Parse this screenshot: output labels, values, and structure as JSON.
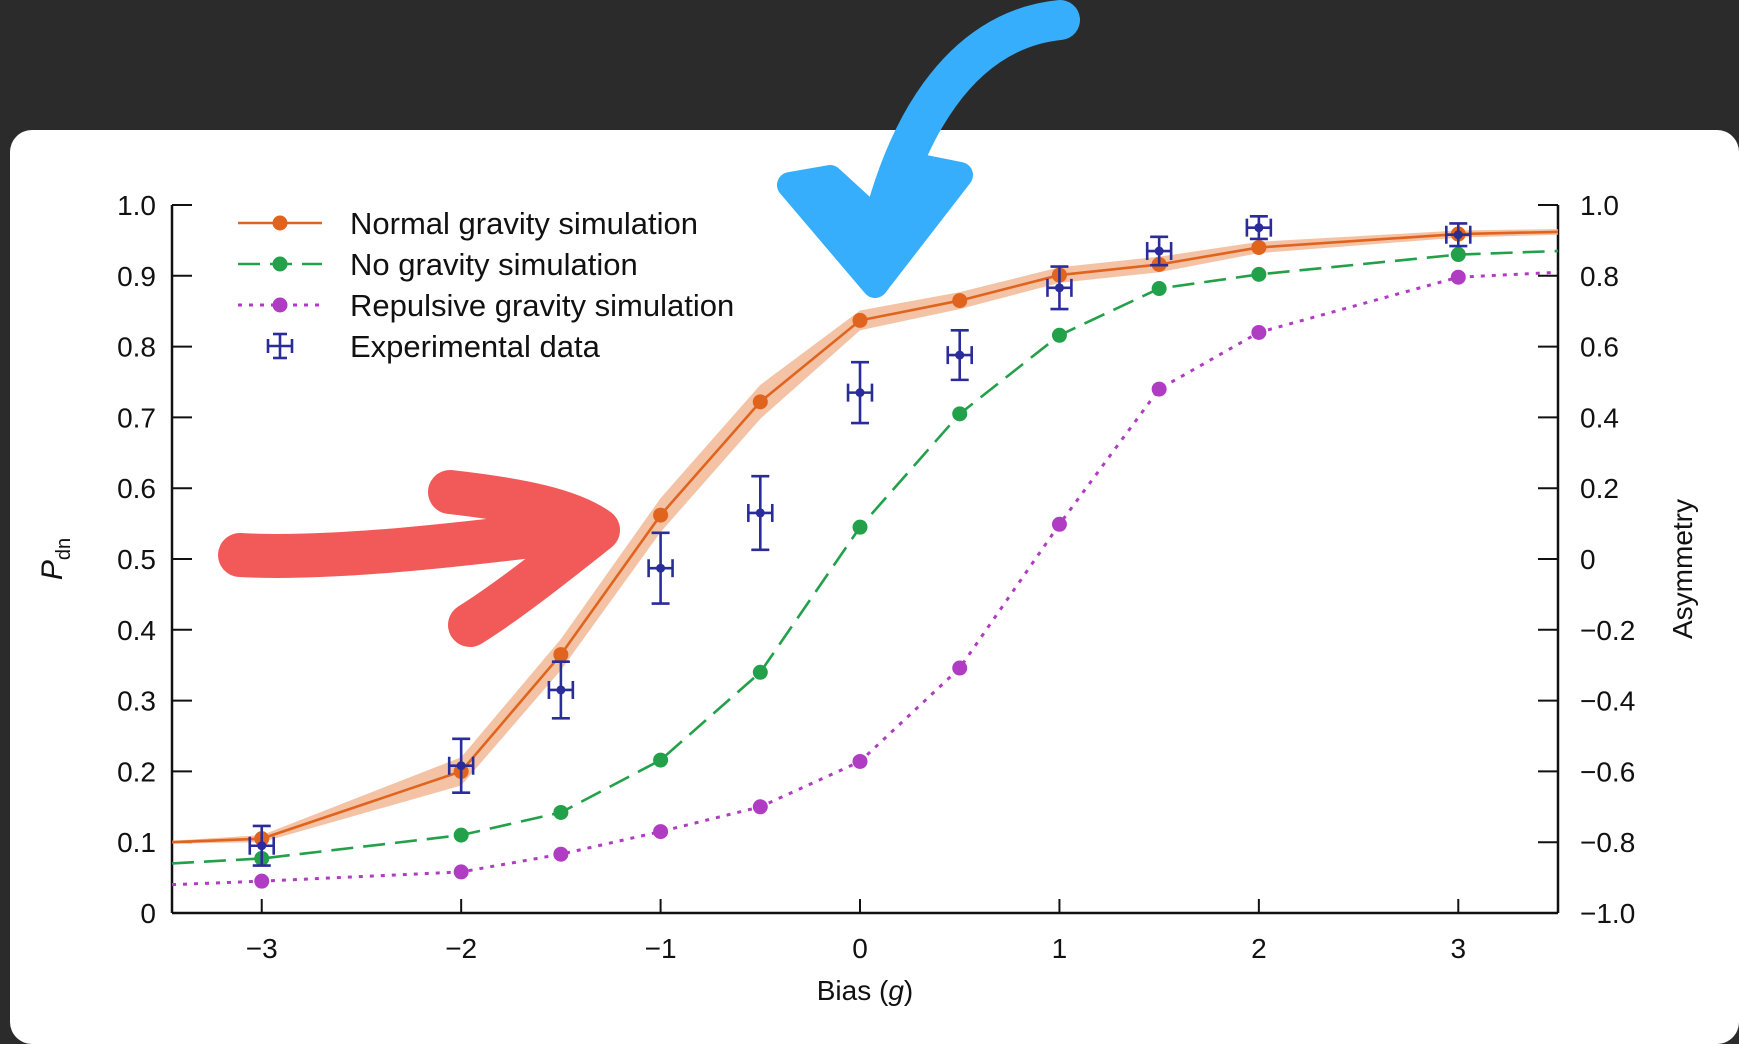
{
  "chart_data": {
    "type": "line",
    "xlabel_prefix": "Bias (",
    "xlabel_var": "g",
    "xlabel_suffix": ")",
    "ylabel_main": "P",
    "ylabel_sub": "dn",
    "y2label": "Asymmetry",
    "xlim": [
      -3.45,
      3.5
    ],
    "ylim": [
      0,
      1.0
    ],
    "y2lim": [
      -1.0,
      1.0
    ],
    "x_ticks": [
      -3,
      -2,
      -1,
      0,
      1,
      2,
      3
    ],
    "x_tick_labels": [
      "−3",
      "−2",
      "−1",
      "0",
      "1",
      "2",
      "3"
    ],
    "y_ticks": [
      0,
      0.1,
      0.2,
      0.3,
      0.4,
      0.5,
      0.6,
      0.7,
      0.8,
      0.9,
      1.0
    ],
    "y_tick_labels": [
      "0",
      "0.1",
      "0.2",
      "0.3",
      "0.4",
      "0.5",
      "0.6",
      "0.7",
      "0.8",
      "0.9",
      "1.0"
    ],
    "y2_ticks": [
      -1.0,
      -0.8,
      -0.6,
      -0.4,
      -0.2,
      0,
      0.2,
      0.4,
      0.6,
      0.8,
      1.0
    ],
    "y2_tick_labels": [
      "−1.0",
      "−0.8",
      "−0.6",
      "−0.4",
      "−0.2",
      "0",
      "0.2",
      "0.4",
      "0.6",
      "0.8",
      "1.0"
    ],
    "legend_position": "top-left",
    "series": [
      {
        "name": "Normal gravity simulation",
        "style": "solid",
        "color": "#e0641e",
        "band_color": "#f2b896",
        "x": [
          -3.45,
          -3,
          -2,
          -1.5,
          -1,
          -0.5,
          0,
          0.5,
          1,
          1.5,
          2,
          3,
          3.5
        ],
        "y": [
          0.1,
          0.105,
          0.2,
          0.365,
          0.562,
          0.722,
          0.837,
          0.865,
          0.901,
          0.916,
          0.94,
          0.959,
          0.962
        ],
        "band_halfwidth": [
          0.002,
          0.005,
          0.02,
          0.022,
          0.024,
          0.024,
          0.014,
          0.012,
          0.011,
          0.011,
          0.008,
          0.005,
          0.004
        ],
        "markers": [
          false,
          true,
          true,
          true,
          true,
          true,
          true,
          true,
          true,
          true,
          true,
          true,
          false
        ]
      },
      {
        "name": "No gravity simulation",
        "style": "dashed",
        "color": "#23a04a",
        "x": [
          -3.45,
          -3,
          -2,
          -1.5,
          -1,
          -0.5,
          0,
          0.5,
          1,
          1.5,
          2,
          3,
          3.5
        ],
        "y": [
          0.07,
          0.077,
          0.11,
          0.142,
          0.216,
          0.34,
          0.545,
          0.705,
          0.816,
          0.882,
          0.902,
          0.93,
          0.935
        ],
        "markers": [
          false,
          true,
          true,
          true,
          true,
          true,
          true,
          true,
          true,
          true,
          true,
          true,
          false
        ]
      },
      {
        "name": "Repulsive gravity simulation",
        "style": "dotted",
        "color": "#b03cc3",
        "x": [
          -3.45,
          -3,
          -2,
          -1.5,
          -1,
          -0.5,
          0,
          0.5,
          1,
          1.5,
          2,
          3,
          3.5
        ],
        "y": [
          0.04,
          0.045,
          0.058,
          0.083,
          0.115,
          0.15,
          0.214,
          0.346,
          0.549,
          0.74,
          0.82,
          0.898,
          0.905
        ],
        "markers": [
          false,
          true,
          true,
          true,
          true,
          true,
          true,
          true,
          true,
          true,
          true,
          true,
          false
        ]
      }
    ],
    "experimental": {
      "name": "Experimental data",
      "color": "#2a2c9a",
      "x": [
        -3,
        -2,
        -1.5,
        -1,
        -0.5,
        0,
        0.5,
        1,
        1.5,
        2,
        3
      ],
      "y": [
        0.095,
        0.208,
        0.315,
        0.487,
        0.565,
        0.735,
        0.788,
        0.883,
        0.935,
        0.968,
        0.958
      ],
      "y_err": [
        0.028,
        0.038,
        0.04,
        0.05,
        0.052,
        0.043,
        0.035,
        0.03,
        0.02,
        0.016,
        0.016
      ],
      "x_err": [
        0.06,
        0.06,
        0.06,
        0.06,
        0.06,
        0.06,
        0.06,
        0.06,
        0.06,
        0.06,
        0.06
      ]
    }
  },
  "annotations": {
    "red_arrow_color": "#f25a5a",
    "blue_arrow_color": "#36aefc"
  }
}
